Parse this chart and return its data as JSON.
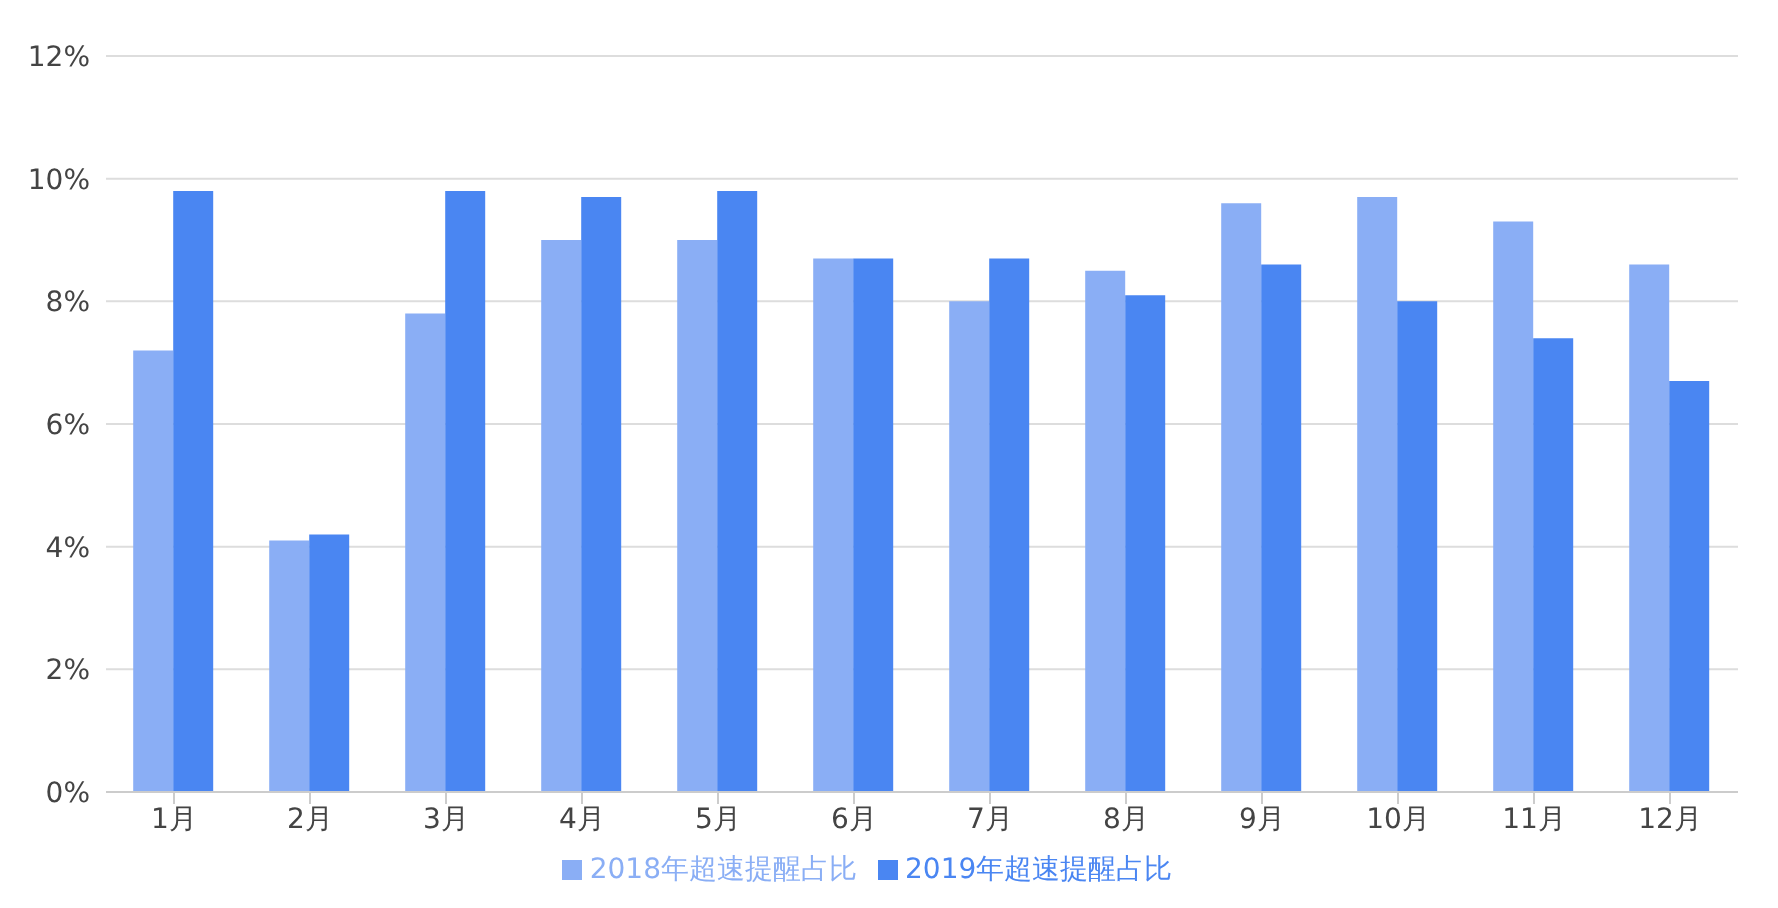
{
  "chart_data": {
    "type": "bar",
    "categories": [
      "1月",
      "2月",
      "3月",
      "4月",
      "5月",
      "6月",
      "7月",
      "8月",
      "9月",
      "10月",
      "11月",
      "12月"
    ],
    "series": [
      {
        "name": "2018年超速提醒占比",
        "color": "#8aaef5",
        "values": [
          7.2,
          4.1,
          7.8,
          9.0,
          9.0,
          8.7,
          8.0,
          8.5,
          9.6,
          9.7,
          9.3,
          8.6
        ]
      },
      {
        "name": "2019年超速提醒占比",
        "color": "#4a86f2",
        "values": [
          9.8,
          4.2,
          9.8,
          9.7,
          9.8,
          8.7,
          8.7,
          8.1,
          8.6,
          8.0,
          7.4,
          6.7
        ]
      }
    ],
    "ylim": [
      0,
      12
    ],
    "yticks": [
      {
        "value": 0,
        "label": "0%"
      },
      {
        "value": 2,
        "label": "2%"
      },
      {
        "value": 4,
        "label": "4%"
      },
      {
        "value": 6,
        "label": "6%"
      },
      {
        "value": 8,
        "label": "8%"
      },
      {
        "value": 10,
        "label": "10%"
      },
      {
        "value": 12,
        "label": "12%"
      }
    ],
    "grid": "y",
    "legend": "bottom"
  }
}
